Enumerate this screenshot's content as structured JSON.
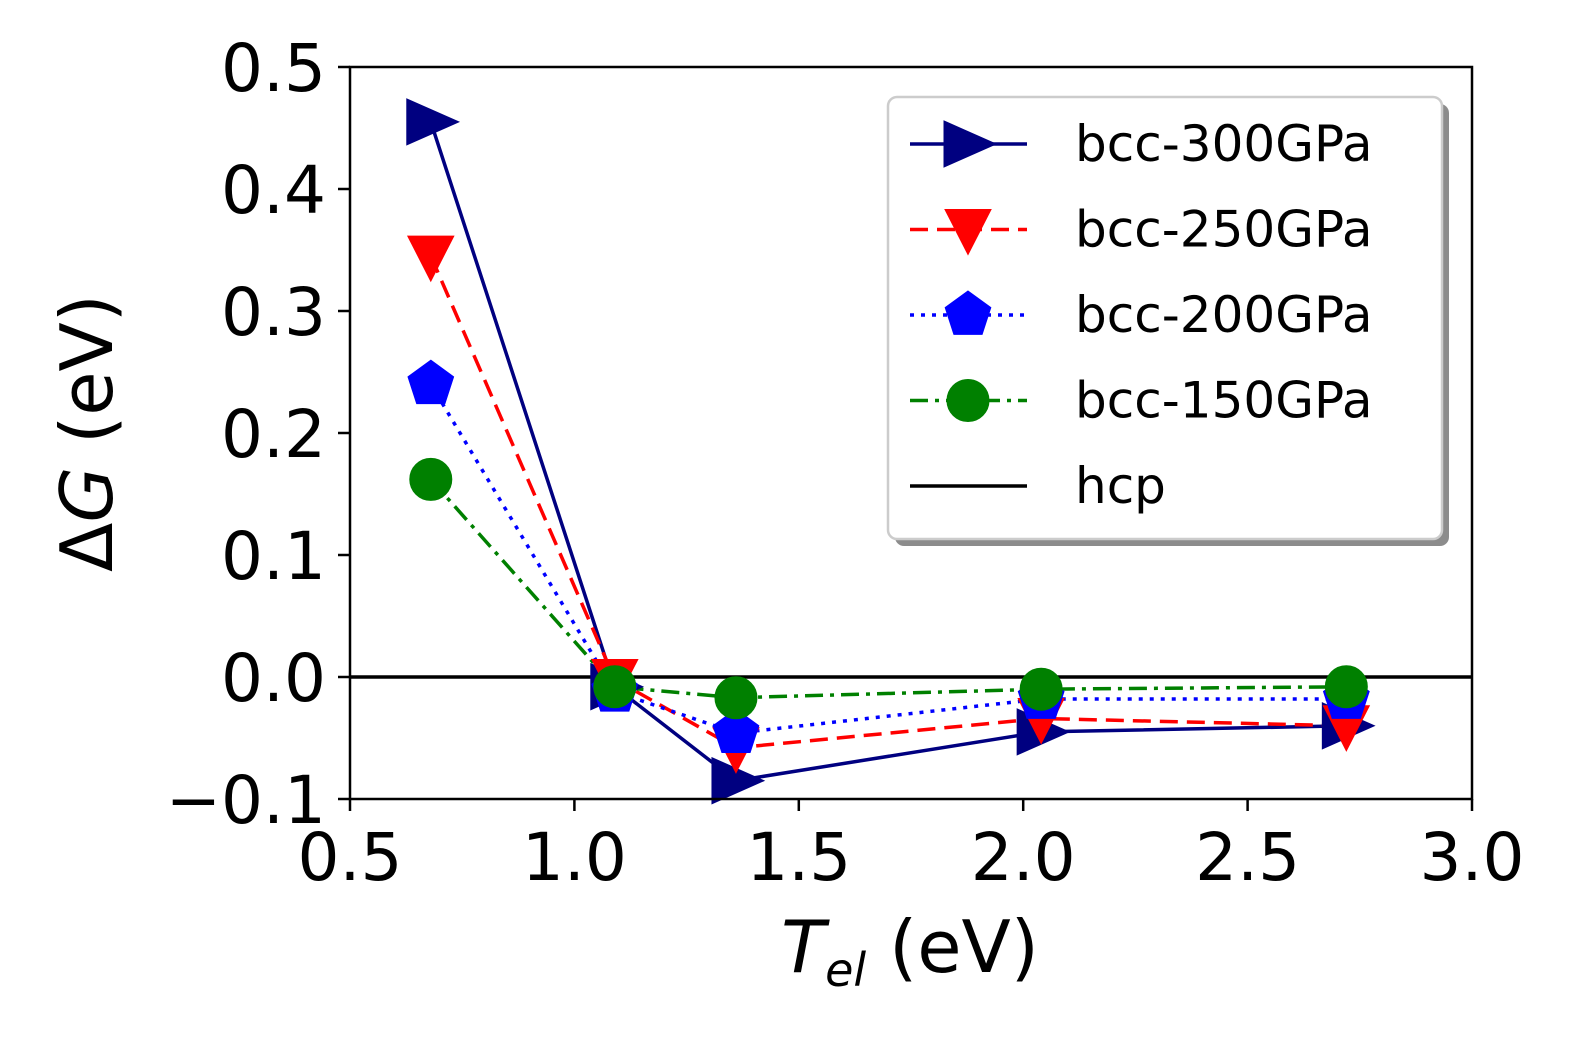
{
  "chart_data": {
    "type": "line",
    "title": "",
    "xlabel_main": "T",
    "xlabel_sub": "el",
    "xlabel_unit": " (eV)",
    "ylabel_prefix": "Δ",
    "ylabel_var": "G",
    "ylabel_unit": " (eV)",
    "xlim": [
      0.5,
      3.0
    ],
    "ylim": [
      -0.1,
      0.5
    ],
    "xticks": [
      0.5,
      1.0,
      1.5,
      2.0,
      2.5,
      3.0
    ],
    "xtick_labels": [
      "0.5",
      "1.0",
      "1.5",
      "2.0",
      "2.5",
      "3.0"
    ],
    "yticks": [
      -0.1,
      0.0,
      0.1,
      0.2,
      0.3,
      0.4,
      0.5
    ],
    "ytick_labels": [
      "−0.1",
      "0.0",
      "0.1",
      "0.2",
      "0.3",
      "0.4",
      "0.5"
    ],
    "grid": false,
    "legend_position": "top-right",
    "x": [
      0.68,
      1.09,
      1.36,
      2.04,
      2.72
    ],
    "series": [
      {
        "name": "bcc-300GPa",
        "color": "#000080",
        "linestyle": "solid",
        "marker": "triangle-right",
        "values": [
          0.455,
          -0.008,
          -0.085,
          -0.045,
          -0.04
        ]
      },
      {
        "name": "bcc-250GPa",
        "color": "#ff0000",
        "linestyle": "dashed",
        "marker": "triangle-down",
        "values": [
          0.345,
          -0.002,
          -0.058,
          -0.034,
          -0.04
        ]
      },
      {
        "name": "bcc-200GPa",
        "color": "#0000ff",
        "linestyle": "dotted",
        "marker": "pentagon",
        "values": [
          0.24,
          -0.012,
          -0.046,
          -0.018,
          -0.018
        ]
      },
      {
        "name": "bcc-150GPa",
        "color": "#008000",
        "linestyle": "dashdot",
        "marker": "circle",
        "values": [
          0.162,
          -0.008,
          -0.017,
          -0.01,
          -0.008
        ]
      }
    ],
    "hlines": [
      {
        "name": "hcp",
        "color": "#000000",
        "linestyle": "solid",
        "y": 0.0
      }
    ]
  }
}
